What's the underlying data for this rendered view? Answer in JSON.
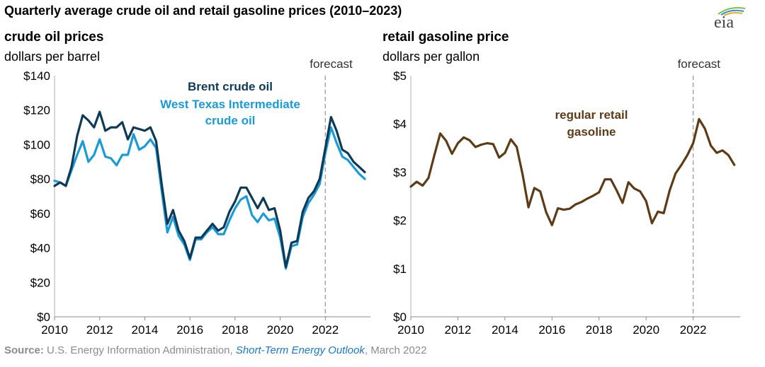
{
  "title": "Quarterly average crude oil and retail gasoline prices (2010–2023)",
  "logo_text": "eia",
  "source": {
    "label": "Source:",
    "text1": "U.S. Energy Information Administration,",
    "publication": "Short-Term Energy Outlook",
    "text2": ", March 2022"
  },
  "colors": {
    "brent": "#0f3a57",
    "wti": "#1a9ad6",
    "gasoline": "#5c3b16",
    "forecast_line": "#999999",
    "axis": "#b0b0b0"
  },
  "chart_data": [
    {
      "type": "line",
      "title": "crude oil prices",
      "ylabel": "dollars per barrel",
      "ylim": [
        0,
        140
      ],
      "xlim": [
        2010,
        2024
      ],
      "yticks": [
        0,
        20,
        40,
        60,
        80,
        100,
        120,
        140
      ],
      "ytick_labels": [
        "$0",
        "$20",
        "$40",
        "$60",
        "$80",
        "$100",
        "$120",
        "$140"
      ],
      "xticks": [
        2010,
        2012,
        2014,
        2016,
        2018,
        2020,
        2022
      ],
      "xtick_labels": [
        "2010",
        "2012",
        "2014",
        "2016",
        "2018",
        "2020",
        "2022"
      ],
      "forecast_start": 2022,
      "forecast_label": "forecast",
      "x": [
        2010.0,
        2010.25,
        2010.5,
        2010.75,
        2011.0,
        2011.25,
        2011.5,
        2011.75,
        2012.0,
        2012.25,
        2012.5,
        2012.75,
        2013.0,
        2013.25,
        2013.5,
        2013.75,
        2014.0,
        2014.25,
        2014.5,
        2014.75,
        2015.0,
        2015.25,
        2015.5,
        2015.75,
        2016.0,
        2016.25,
        2016.5,
        2016.75,
        2017.0,
        2017.25,
        2017.5,
        2017.75,
        2018.0,
        2018.25,
        2018.5,
        2018.75,
        2019.0,
        2019.25,
        2019.5,
        2019.75,
        2020.0,
        2020.25,
        2020.5,
        2020.75,
        2021.0,
        2021.25,
        2021.5,
        2021.75,
        2022.0,
        2022.25,
        2022.5,
        2022.75,
        2023.0,
        2023.25,
        2023.5,
        2023.75
      ],
      "series": [
        {
          "name": "Brent crude oil",
          "values": [
            76,
            78,
            76,
            87,
            105,
            117,
            114,
            110,
            119,
            108,
            110,
            110,
            113,
            103,
            110,
            109,
            108,
            110,
            102,
            77,
            54,
            62,
            50,
            44,
            34,
            46,
            46,
            50,
            54,
            50,
            52,
            61,
            67,
            75,
            75,
            69,
            63,
            69,
            62,
            63,
            50,
            29,
            43,
            44,
            61,
            69,
            73,
            80,
            98,
            116,
            108,
            97,
            95,
            90,
            87,
            84
          ]
        },
        {
          "name": "West Texas Intermediate crude oil",
          "values": [
            79,
            78,
            76,
            85,
            94,
            102,
            90,
            94,
            103,
            93,
            92,
            88,
            94,
            94,
            106,
            97,
            99,
            103,
            98,
            73,
            49,
            58,
            47,
            42,
            33,
            45,
            45,
            49,
            52,
            48,
            48,
            56,
            63,
            68,
            70,
            59,
            55,
            60,
            56,
            57,
            46,
            28,
            41,
            42,
            58,
            66,
            71,
            77,
            95,
            110,
            101,
            93,
            91,
            87,
            83,
            80
          ]
        }
      ],
      "annotations": [
        "Brent crude oil",
        "West Texas Intermediate",
        "crude oil"
      ]
    },
    {
      "type": "line",
      "title": "retail gasoline price",
      "ylabel": "dollars per gallon",
      "ylim": [
        0,
        5
      ],
      "xlim": [
        2010,
        2024
      ],
      "yticks": [
        0,
        1,
        2,
        3,
        4,
        5
      ],
      "ytick_labels": [
        "$0",
        "$1",
        "$2",
        "$3",
        "$4",
        "$5"
      ],
      "xticks": [
        2010,
        2012,
        2014,
        2016,
        2018,
        2020,
        2022
      ],
      "xtick_labels": [
        "2010",
        "2012",
        "2014",
        "2016",
        "2018",
        "2020",
        "2022"
      ],
      "forecast_start": 2022,
      "forecast_label": "forecast",
      "x": [
        2010.0,
        2010.25,
        2010.5,
        2010.75,
        2011.0,
        2011.25,
        2011.5,
        2011.75,
        2012.0,
        2012.25,
        2012.5,
        2012.75,
        2013.0,
        2013.25,
        2013.5,
        2013.75,
        2014.0,
        2014.25,
        2014.5,
        2014.75,
        2015.0,
        2015.25,
        2015.5,
        2015.75,
        2016.0,
        2016.25,
        2016.5,
        2016.75,
        2017.0,
        2017.25,
        2017.5,
        2017.75,
        2018.0,
        2018.25,
        2018.5,
        2018.75,
        2019.0,
        2019.25,
        2019.5,
        2019.75,
        2020.0,
        2020.25,
        2020.5,
        2020.75,
        2021.0,
        2021.25,
        2021.5,
        2021.75,
        2022.0,
        2022.25,
        2022.5,
        2022.75,
        2023.0,
        2023.25,
        2023.5,
        2023.75
      ],
      "series": [
        {
          "name": "regular retail gasoline",
          "values": [
            2.7,
            2.8,
            2.72,
            2.88,
            3.35,
            3.8,
            3.65,
            3.38,
            3.6,
            3.72,
            3.66,
            3.52,
            3.57,
            3.6,
            3.58,
            3.3,
            3.4,
            3.68,
            3.52,
            2.95,
            2.27,
            2.67,
            2.6,
            2.17,
            1.9,
            2.25,
            2.22,
            2.24,
            2.33,
            2.38,
            2.45,
            2.51,
            2.58,
            2.85,
            2.85,
            2.62,
            2.36,
            2.79,
            2.66,
            2.6,
            2.4,
            1.94,
            2.18,
            2.15,
            2.62,
            2.97,
            3.15,
            3.35,
            3.6,
            4.1,
            3.9,
            3.55,
            3.4,
            3.45,
            3.35,
            3.15
          ]
        }
      ],
      "annotations": [
        "regular retail",
        "gasoline"
      ]
    }
  ]
}
